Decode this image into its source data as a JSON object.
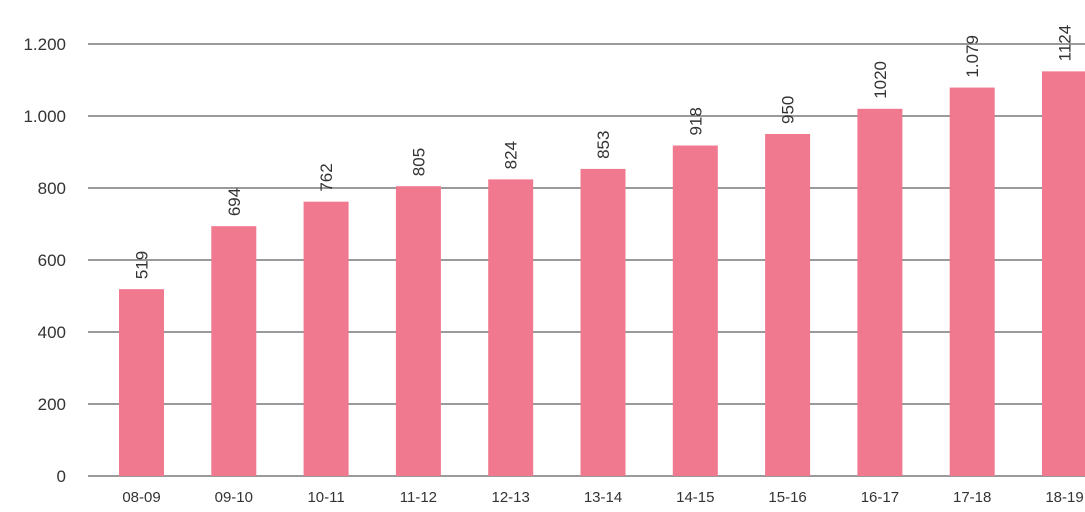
{
  "chart_data": {
    "type": "bar",
    "title": "",
    "xlabel": "",
    "ylabel": "",
    "categories": [
      "08-09",
      "09-10",
      "10-11",
      "11-12",
      "12-13",
      "13-14",
      "14-15",
      "15-16",
      "16-17",
      "17-18",
      "18-19"
    ],
    "values": [
      519,
      694,
      762,
      805,
      824,
      853,
      918,
      950,
      1020,
      1079,
      1124
    ],
    "data_labels": [
      "519",
      "694",
      "762",
      "805",
      "824",
      "853",
      "918",
      "950",
      "1020",
      "1.079",
      "1124"
    ],
    "y_ticks": [
      0,
      200,
      400,
      600,
      800,
      1000,
      1200
    ],
    "y_tick_labels": [
      "0",
      "200",
      "400",
      "600",
      "800",
      "1.000",
      "1.200"
    ],
    "ylim": [
      0,
      1200
    ],
    "grid": true,
    "legend": "none",
    "bar_color": "#f0798f",
    "grid_color": "#9a9a9a"
  }
}
